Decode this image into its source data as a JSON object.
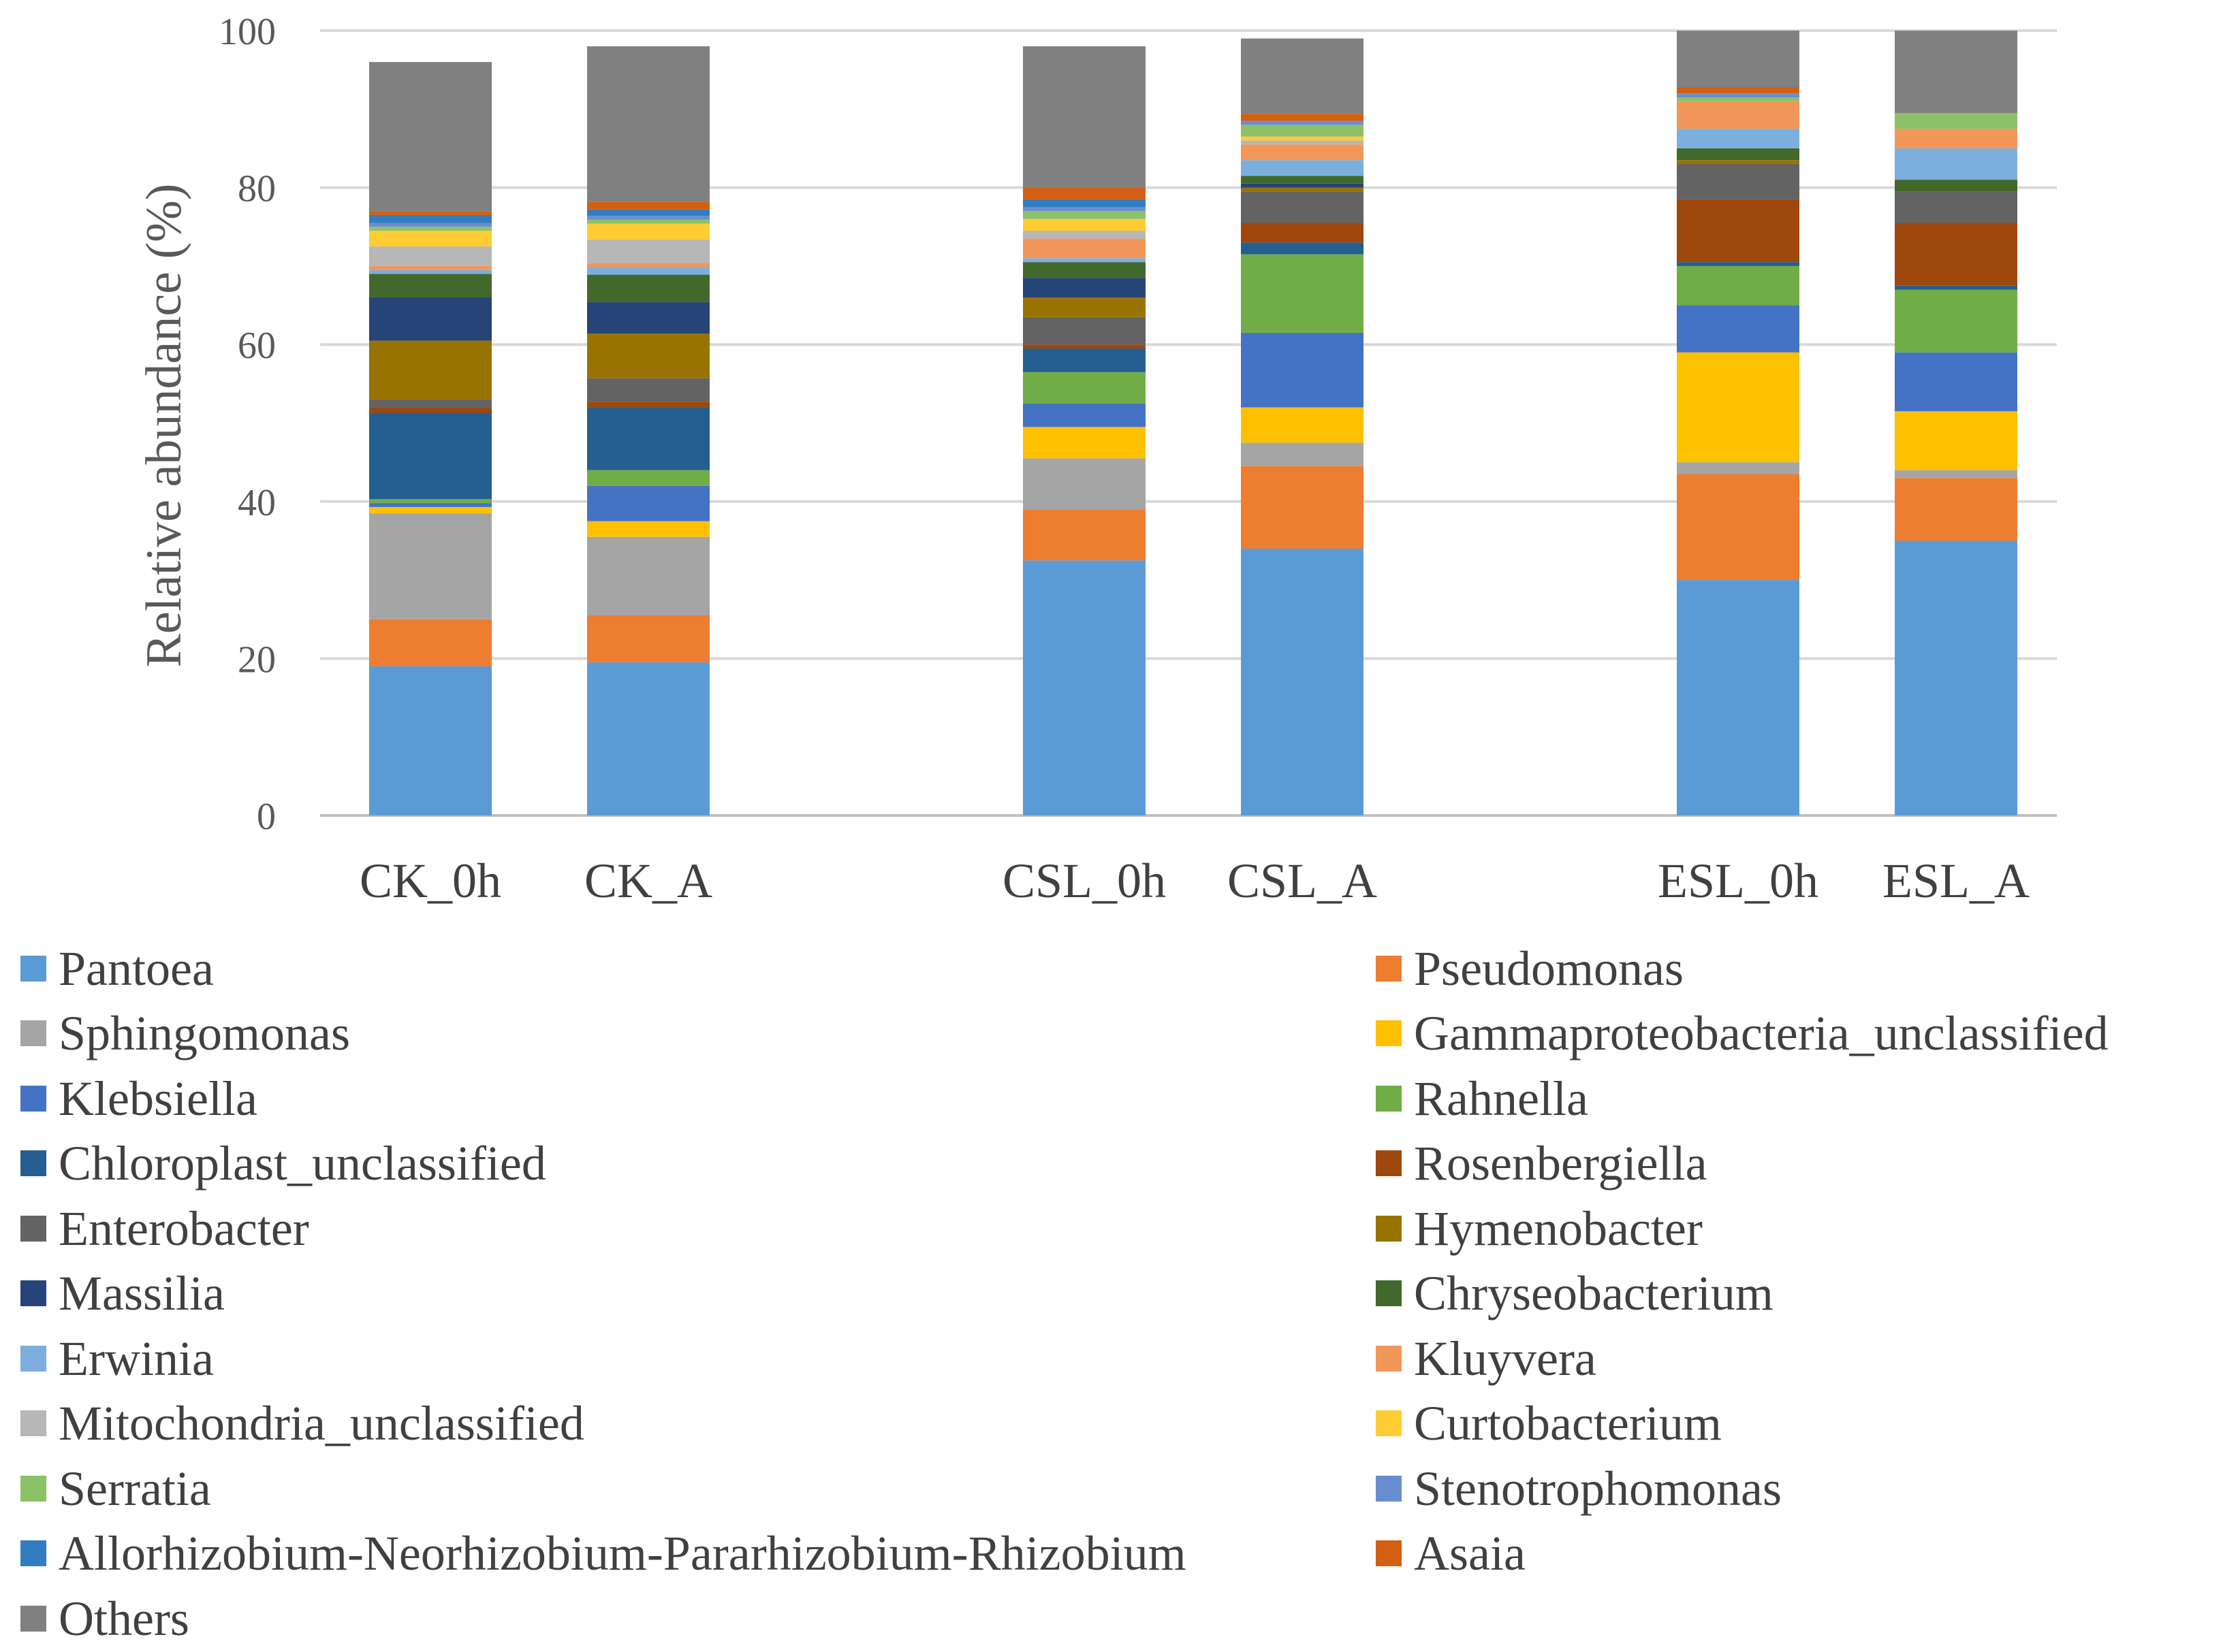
{
  "chart_data": {
    "type": "bar",
    "stacked": true,
    "title": "",
    "xlabel": "",
    "ylabel": "Relative abundance (%)",
    "ylim": [
      0,
      100
    ],
    "yticks": [
      0,
      20,
      40,
      60,
      80,
      100
    ],
    "grid": true,
    "legend_position": "bottom",
    "groups": [
      [
        "CK_0h",
        "CK_A"
      ],
      [
        "CSL_0h",
        "CSL_A"
      ],
      [
        "ESL_0h",
        "ESL_A"
      ]
    ],
    "categories": [
      "CK_0h",
      "CK_A",
      "CSL_0h",
      "CSL_A",
      "ESL_0h",
      "ESL_A"
    ],
    "series": [
      {
        "name": "Pantoea",
        "color": "#5B9BD5",
        "values": [
          19.0,
          19.5,
          32.5,
          34.0,
          30.0,
          35.0
        ]
      },
      {
        "name": "Pseudomonas",
        "color": "#ED7D31",
        "values": [
          6.0,
          6.0,
          6.5,
          10.5,
          13.5,
          8.0
        ]
      },
      {
        "name": "Sphingomonas",
        "color": "#A5A5A5",
        "values": [
          13.5,
          10.0,
          6.5,
          3.0,
          1.5,
          1.0
        ]
      },
      {
        "name": "Gammaproteobacteria_unclassified",
        "color": "#FFC000",
        "values": [
          0.8,
          2.0,
          4.0,
          4.5,
          14.0,
          7.5
        ]
      },
      {
        "name": "Klebsiella",
        "color": "#4472C4",
        "values": [
          0.5,
          4.5,
          3.0,
          9.5,
          6.0,
          7.5
        ]
      },
      {
        "name": "Rahnella",
        "color": "#70AD47",
        "values": [
          0.5,
          2.0,
          4.0,
          10.0,
          5.0,
          8.0
        ]
      },
      {
        "name": "Chloroplast_unclassified",
        "color": "#255E91",
        "values": [
          11.0,
          8.0,
          3.0,
          1.5,
          0.5,
          0.5
        ]
      },
      {
        "name": "Rosenbergiella",
        "color": "#9E480E",
        "values": [
          0.7,
          0.7,
          0.5,
          2.5,
          8.0,
          8.0
        ]
      },
      {
        "name": "Enterobacter",
        "color": "#636363",
        "values": [
          1.0,
          3.0,
          3.5,
          4.0,
          4.5,
          4.0
        ]
      },
      {
        "name": "Hymenobacter",
        "color": "#997300",
        "values": [
          7.5,
          5.7,
          2.5,
          0.5,
          0.5,
          0.0
        ]
      },
      {
        "name": "Massilia",
        "color": "#264478",
        "values": [
          5.5,
          4.0,
          2.5,
          0.5,
          0.0,
          0.0
        ]
      },
      {
        "name": "Chryseobacterium",
        "color": "#43682B",
        "values": [
          3.0,
          3.5,
          2.0,
          1.0,
          1.5,
          1.5
        ]
      },
      {
        "name": "Erwinia",
        "color": "#7CAFDD",
        "values": [
          0.5,
          1.0,
          0.5,
          2.0,
          2.5,
          4.0
        ]
      },
      {
        "name": "Kluyvera",
        "color": "#F1975A",
        "values": [
          0.5,
          0.5,
          2.5,
          2.0,
          3.5,
          2.5
        ]
      },
      {
        "name": "Mitochondria_unclassified",
        "color": "#B7B7B7",
        "values": [
          2.5,
          3.0,
          1.0,
          0.5,
          0.0,
          0.0
        ]
      },
      {
        "name": "Curtobacterium",
        "color": "#FFCD33",
        "values": [
          2.0,
          2.0,
          1.5,
          0.5,
          0.0,
          0.0
        ]
      },
      {
        "name": "Serratia",
        "color": "#8CC168",
        "values": [
          0.5,
          0.5,
          1.0,
          1.5,
          0.5,
          2.0
        ]
      },
      {
        "name": "Stenotrophomonas",
        "color": "#698ED0",
        "values": [
          0.5,
          0.5,
          0.5,
          0.5,
          0.5,
          0.0
        ]
      },
      {
        "name": "Allorhizobium-Neorhizobium-Pararhizobium-Rhizobium",
        "color": "#327DC2",
        "values": [
          1.0,
          0.8,
          1.0,
          0.0,
          0.0,
          0.0
        ]
      },
      {
        "name": "Asaia",
        "color": "#D26012",
        "values": [
          0.5,
          1.0,
          1.5,
          0.9,
          0.8,
          0.0
        ]
      },
      {
        "name": "Others",
        "color": "#808080",
        "values": [
          19.0,
          19.8,
          18.0,
          9.6,
          7.2,
          10.5
        ]
      }
    ]
  }
}
